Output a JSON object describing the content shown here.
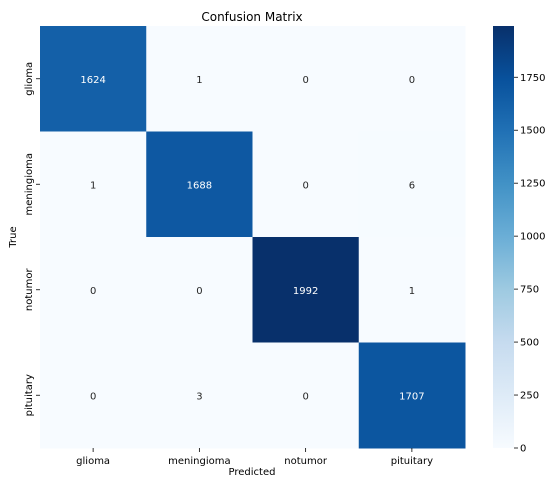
{
  "chart_data": {
    "type": "heatmap",
    "title": "Confusion Matrix",
    "xlabel": "Predicted",
    "ylabel": "True",
    "x_categories": [
      "glioma",
      "meningioma",
      "notumor",
      "pituitary"
    ],
    "y_categories": [
      "glioma",
      "meningioma",
      "notumor",
      "pituitary"
    ],
    "values": [
      [
        1624,
        1,
        0,
        0
      ],
      [
        1,
        1688,
        0,
        6
      ],
      [
        0,
        0,
        1992,
        1
      ],
      [
        0,
        3,
        0,
        1707
      ]
    ],
    "colormap": "Blues",
    "colorbar": {
      "min": 0,
      "max": 1992,
      "ticks": [
        0,
        250,
        500,
        750,
        1000,
        1250,
        1500,
        1750
      ]
    },
    "annotation_colors": {
      "light_cell": "#262626",
      "dark_cell": "#ffffff"
    }
  }
}
